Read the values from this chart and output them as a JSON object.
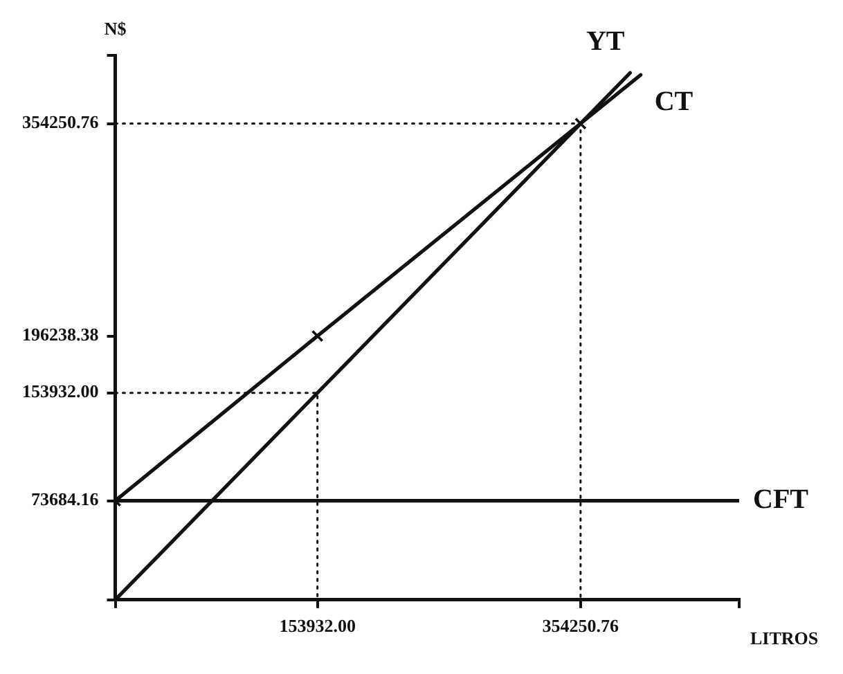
{
  "chart_data": {
    "type": "line",
    "xlabel": "LITROS",
    "ylabel": "N$",
    "xlim": [
      0,
      475000
    ],
    "ylim": [
      0,
      405000
    ],
    "xticks": [
      {
        "value": 0,
        "label": null
      },
      {
        "value": 153932,
        "label": "153932.00"
      },
      {
        "value": 354250.76,
        "label": "354250.76"
      },
      {
        "value": 475000,
        "label": null
      }
    ],
    "yticks": [
      {
        "value": 0,
        "label": null
      },
      {
        "value": 73684.16,
        "label": "73684.16"
      },
      {
        "value": 153932,
        "label": "153932.00"
      },
      {
        "value": 196238.38,
        "label": "196238.38"
      },
      {
        "value": 354250.76,
        "label": "354250.76"
      },
      {
        "value": 405000,
        "label": null
      }
    ],
    "series": [
      {
        "name": "YT",
        "color": "#111111",
        "x": [
          0,
          153932,
          354250.76,
          392000
        ],
        "values": [
          0,
          153932,
          354250.76,
          392000
        ]
      },
      {
        "name": "CT",
        "color": "#111111",
        "x": [
          0,
          153932,
          354250.76,
          400000
        ],
        "values": [
          73684.16,
          196238.38,
          354250.76,
          390500
        ]
      },
      {
        "name": "CFT",
        "color": "#111111",
        "x": [
          0,
          475000
        ],
        "values": [
          73684.16,
          73684.16
        ]
      },
      {
        "type": "scatter",
        "color": "#111111",
        "marker": "cross",
        "x": [
          0,
          153932,
          354250.76
        ],
        "values": [
          73684.16,
          196238.38,
          354250.76
        ]
      },
      {
        "color": "#111111",
        "line_style": "dotted",
        "x": [
          0,
          354250.76,
          354250.76
        ],
        "values": [
          354250.76,
          354250.76,
          0
        ]
      },
      {
        "color": "#111111",
        "line_style": "dotted",
        "x": [
          0,
          153932,
          153932
        ],
        "values": [
          153932,
          153932,
          0
        ]
      }
    ],
    "grid": false,
    "legend": false
  }
}
